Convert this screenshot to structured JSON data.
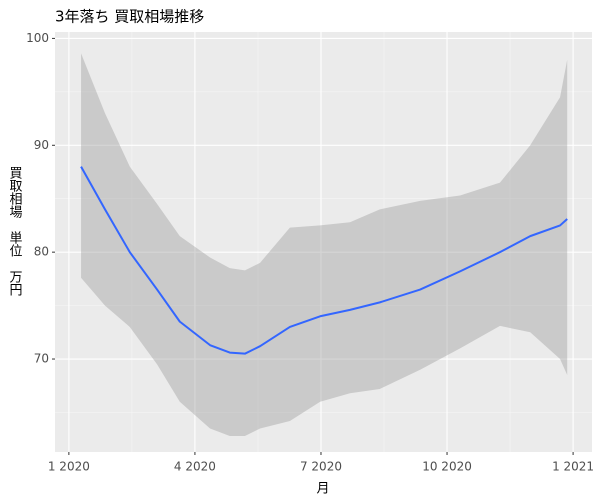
{
  "chart_data": {
    "type": "line",
    "title": "3年落ち 買取相場推移",
    "x_label": "月",
    "y_label": "買取相場　単位　万円",
    "x": [
      1.29,
      1.86,
      2.45,
      3.1,
      3.64,
      4.36,
      4.83,
      5.19,
      5.55,
      6.26,
      6.98,
      7.69,
      8.4,
      9.36,
      10.31,
      11.26,
      11.98,
      12.69,
      12.86
    ],
    "series": [
      {
        "color": "#3366ff",
        "values": [
          88,
          84,
          80,
          76.5,
          73.5,
          71.3,
          70.6,
          70.5,
          71.2,
          73,
          74,
          74.6,
          75.3,
          76.5,
          78.2,
          80,
          81.5,
          82.5,
          83.1
        ]
      }
    ],
    "band": {
      "color": "#999999",
      "upper": [
        98.6,
        93,
        88,
        84.5,
        81.5,
        79.5,
        78.5,
        78.3,
        79,
        82.3,
        82.5,
        82.8,
        84,
        84.8,
        85.3,
        86.5,
        90,
        94.5,
        98
      ],
      "lower": [
        77.6,
        75,
        73,
        69.5,
        66,
        63.5,
        62.8,
        62.8,
        63.5,
        64.2,
        66,
        66.8,
        67.2,
        69,
        71,
        73.1,
        72.5,
        70,
        68.5
      ]
    },
    "xlim": [
      0.67,
      13.45
    ],
    "ylim": [
      61.3,
      100.6
    ],
    "xticks": [
      {
        "value": 1,
        "label": "1 2020"
      },
      {
        "value": 4,
        "label": "4 2020"
      },
      {
        "value": 7,
        "label": "7 2020"
      },
      {
        "value": 10,
        "label": "10 2020"
      },
      {
        "value": 13,
        "label": "1 2021"
      }
    ],
    "yticks": [
      70,
      80,
      90,
      100
    ],
    "grid": true,
    "minor_grid": true
  }
}
